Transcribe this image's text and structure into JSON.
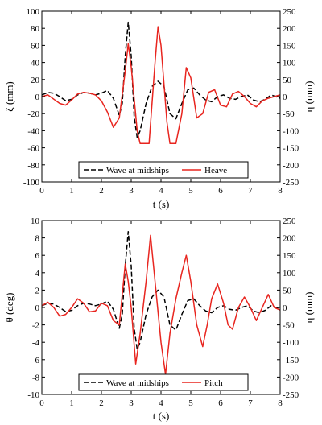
{
  "chart_data": [
    {
      "type": "line",
      "title": "",
      "xlabel": "t (s)",
      "ylabel_left": "ζ (mm)",
      "ylabel_right": "η (mm)",
      "xlim": [
        0,
        8
      ],
      "ylim_left": [
        -100,
        100
      ],
      "ylim_right": [
        -250,
        250
      ],
      "xticks": [
        "0",
        "1",
        "2",
        "3",
        "4",
        "5",
        "6",
        "7",
        "8"
      ],
      "yticks_left": [
        "100",
        "80",
        "60",
        "40",
        "20",
        "0",
        "-20",
        "-40",
        "-60",
        "-80",
        "-100"
      ],
      "yticks_right": [
        "250",
        "200",
        "150",
        "100",
        "50",
        "0",
        "-50",
        "-100",
        "-150",
        "-200",
        "-250"
      ],
      "legend_position": "bottom-center",
      "grid": false,
      "series": [
        {
          "name": "Wave at midships",
          "axis": "right",
          "style": "dashed",
          "color": "#000000",
          "x": [
            0,
            0.2,
            0.4,
            0.6,
            0.8,
            1.0,
            1.2,
            1.4,
            1.6,
            1.8,
            2.0,
            2.2,
            2.4,
            2.6,
            2.7,
            2.8,
            2.9,
            3.0,
            3.1,
            3.2,
            3.3,
            3.5,
            3.7,
            3.9,
            4.1,
            4.3,
            4.5,
            4.7,
            4.9,
            5.1,
            5.3,
            5.5,
            5.7,
            5.9,
            6.1,
            6.3,
            6.5,
            6.7,
            6.9,
            7.1,
            7.3,
            7.5,
            7.7,
            8.0
          ],
          "y": [
            5,
            12,
            10,
            0,
            -12,
            -8,
            5,
            12,
            10,
            5,
            10,
            18,
            -5,
            -55,
            -20,
            120,
            218,
            120,
            -60,
            -120,
            -100,
            -20,
            30,
            45,
            30,
            -50,
            -65,
            -20,
            20,
            25,
            5,
            -10,
            -15,
            0,
            5,
            -5,
            -8,
            0,
            5,
            -10,
            -15,
            -8,
            5,
            -5
          ]
        },
        {
          "name": "Heave",
          "axis": "left",
          "style": "solid",
          "color": "#e8251f",
          "x": [
            0,
            0.2,
            0.4,
            0.6,
            0.8,
            1.0,
            1.2,
            1.4,
            1.6,
            1.8,
            2.0,
            2.2,
            2.4,
            2.6,
            2.8,
            2.9,
            3.0,
            3.2,
            3.3,
            3.6,
            3.8,
            3.9,
            4.0,
            4.2,
            4.3,
            4.5,
            4.7,
            4.85,
            5.0,
            5.2,
            5.4,
            5.6,
            5.8,
            6.0,
            6.2,
            6.4,
            6.6,
            6.8,
            7.0,
            7.2,
            7.4,
            7.6,
            7.8,
            8.0
          ],
          "y": [
            0,
            2,
            -3,
            -8,
            -10,
            -4,
            3,
            5,
            4,
            2,
            -5,
            -18,
            -36,
            -25,
            30,
            62,
            35,
            -40,
            -55,
            -55,
            40,
            82,
            60,
            -30,
            -55,
            -55,
            -20,
            34,
            22,
            -25,
            -20,
            5,
            8,
            -10,
            -12,
            3,
            6,
            0,
            -8,
            -12,
            -5,
            -2,
            0,
            2
          ]
        }
      ]
    },
    {
      "type": "line",
      "title": "",
      "xlabel": "t (s)",
      "ylabel_left": "θ (deg)",
      "ylabel_right": "η (mm)",
      "xlim": [
        0,
        8
      ],
      "ylim_left": [
        -10,
        10
      ],
      "ylim_right": [
        -250,
        250
      ],
      "xticks": [
        "0",
        "1",
        "2",
        "3",
        "4",
        "5",
        "6",
        "7",
        "8"
      ],
      "yticks_left": [
        "10",
        "8",
        "6",
        "4",
        "2",
        "0",
        "-2",
        "-4",
        "-6",
        "-8",
        "-10"
      ],
      "yticks_right": [
        "250",
        "200",
        "150",
        "100",
        "50",
        "0",
        "-50",
        "-100",
        "-150",
        "-200",
        "-250"
      ],
      "legend_position": "bottom-center",
      "grid": false,
      "series": [
        {
          "name": "Wave at midships",
          "axis": "right",
          "style": "dashed",
          "color": "#000000",
          "x": [
            0,
            0.2,
            0.4,
            0.6,
            0.8,
            1.0,
            1.2,
            1.4,
            1.6,
            1.8,
            2.0,
            2.2,
            2.4,
            2.6,
            2.7,
            2.8,
            2.9,
            3.0,
            3.1,
            3.2,
            3.3,
            3.5,
            3.7,
            3.9,
            4.1,
            4.3,
            4.5,
            4.7,
            4.9,
            5.1,
            5.3,
            5.5,
            5.7,
            5.9,
            6.1,
            6.3,
            6.5,
            6.7,
            6.9,
            7.1,
            7.3,
            7.5,
            7.7,
            8.0
          ],
          "y": [
            5,
            12,
            10,
            0,
            -12,
            -8,
            5,
            12,
            10,
            5,
            10,
            18,
            -5,
            -60,
            -20,
            120,
            218,
            120,
            -60,
            -120,
            -100,
            -20,
            30,
            50,
            30,
            -50,
            -65,
            -20,
            20,
            25,
            5,
            -10,
            -15,
            0,
            5,
            -5,
            -8,
            0,
            5,
            -10,
            -15,
            -8,
            5,
            -5
          ]
        },
        {
          "name": "Pitch",
          "axis": "left",
          "style": "solid",
          "color": "#e8251f",
          "x": [
            0,
            0.2,
            0.4,
            0.6,
            0.8,
            1.0,
            1.2,
            1.4,
            1.6,
            1.8,
            2.0,
            2.2,
            2.4,
            2.6,
            2.8,
            2.9,
            3.0,
            3.15,
            3.3,
            3.5,
            3.65,
            3.8,
            4.0,
            4.15,
            4.3,
            4.5,
            4.7,
            4.85,
            5.0,
            5.2,
            5.4,
            5.55,
            5.7,
            5.9,
            6.1,
            6.25,
            6.4,
            6.6,
            6.8,
            7.0,
            7.2,
            7.4,
            7.6,
            7.8,
            8.0
          ],
          "y": [
            0.2,
            0.6,
            0,
            -1,
            -0.8,
            0,
            1,
            0.5,
            -0.5,
            -0.4,
            0.5,
            0.2,
            -1.5,
            -2,
            5,
            3,
            0,
            -6.5,
            -3,
            3,
            8.3,
            3,
            -4,
            -7.7,
            -3,
            1,
            4,
            6,
            3,
            -2,
            -4.5,
            -2,
            1,
            2.7,
            0.5,
            -2,
            -2.5,
            0,
            1.2,
            0,
            -1.5,
            0,
            1.5,
            0,
            -0.3
          ]
        }
      ]
    }
  ]
}
